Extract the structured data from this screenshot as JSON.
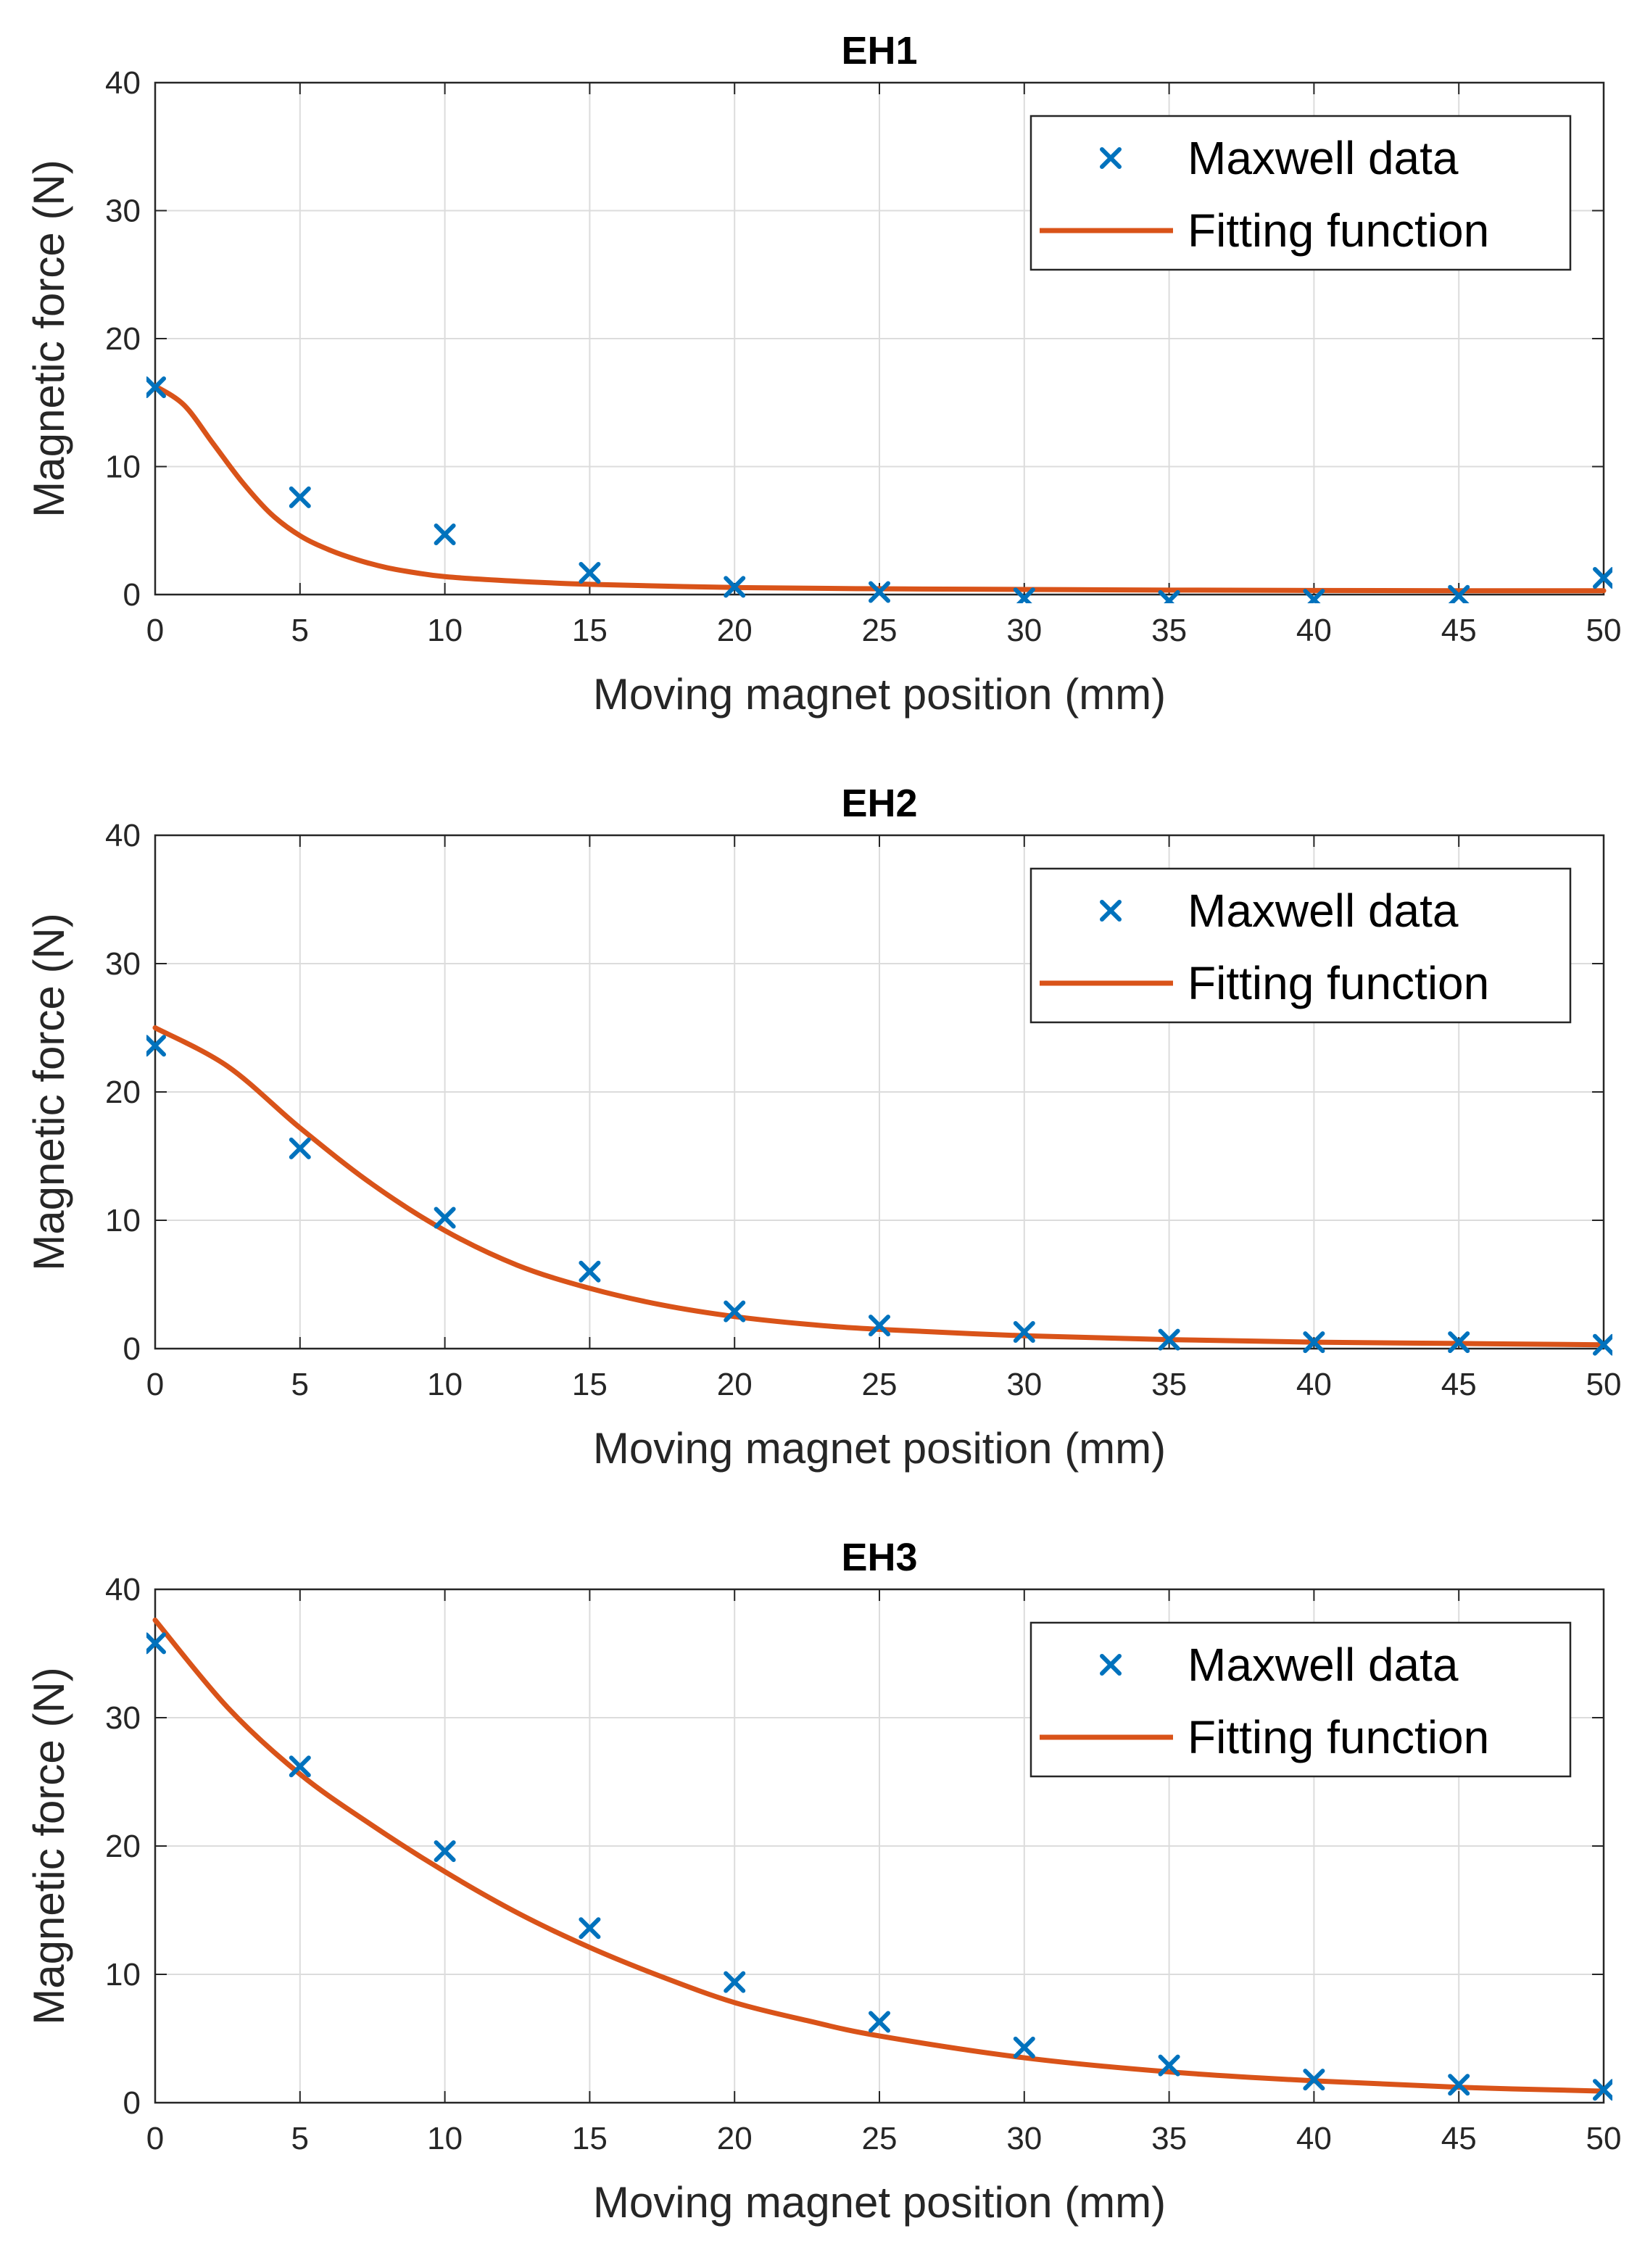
{
  "colors": {
    "scatter": "#0072BD",
    "fit": "#D95319",
    "grid": "#DCDCDC",
    "axis": "#262626",
    "background": "#FFFFFF"
  },
  "chart_data": [
    {
      "type": "scatter+line",
      "title": "EH1",
      "xlabel": "Moving magnet position (mm)",
      "ylabel": "Magnetic force (N)",
      "xlim": [
        0,
        50
      ],
      "ylim": [
        0,
        40
      ],
      "xticks": [
        "0",
        "5",
        "10",
        "15",
        "20",
        "25",
        "30",
        "35",
        "40",
        "45",
        "50"
      ],
      "yticks": [
        "0",
        "10",
        "20",
        "30",
        "40"
      ],
      "grid": true,
      "legend": {
        "position": "top-right",
        "entries": [
          "Maxwell data",
          "Fitting function"
        ]
      },
      "series": [
        {
          "name": "Maxwell data",
          "marker": "x",
          "x": [
            0,
            5,
            10,
            15,
            20,
            25,
            30,
            35,
            40,
            45,
            50
          ],
          "y": [
            16.2,
            7.6,
            4.7,
            1.7,
            0.6,
            0.2,
            -0.3,
            -0.5,
            -0.4,
            -0.1,
            1.3
          ]
        },
        {
          "name": "Fitting function",
          "line": true,
          "x": [
            0,
            1,
            2,
            3,
            4,
            5,
            6,
            7,
            8,
            9,
            10,
            12,
            15,
            20,
            25,
            30,
            35,
            40,
            45,
            50
          ],
          "y": [
            16.3,
            14.8,
            11.8,
            8.8,
            6.3,
            4.6,
            3.5,
            2.7,
            2.1,
            1.7,
            1.4,
            1.1,
            0.8,
            0.55,
            0.45,
            0.4,
            0.35,
            0.32,
            0.3,
            0.3
          ]
        }
      ]
    },
    {
      "type": "scatter+line",
      "title": "EH2",
      "xlabel": "Moving magnet position (mm)",
      "ylabel": "Magnetic force (N)",
      "xlim": [
        0,
        50
      ],
      "ylim": [
        0,
        40
      ],
      "xticks": [
        "0",
        "5",
        "10",
        "15",
        "20",
        "25",
        "30",
        "35",
        "40",
        "45",
        "50"
      ],
      "yticks": [
        "0",
        "10",
        "20",
        "30",
        "40"
      ],
      "grid": true,
      "legend": {
        "position": "top-right",
        "entries": [
          "Maxwell data",
          "Fitting function"
        ]
      },
      "series": [
        {
          "name": "Maxwell data",
          "marker": "x",
          "x": [
            0,
            5,
            10,
            15,
            20,
            25,
            30,
            35,
            40,
            45,
            50
          ],
          "y": [
            23.6,
            15.6,
            10.2,
            6.0,
            2.9,
            1.8,
            1.3,
            0.7,
            0.5,
            0.5,
            0.3
          ]
        },
        {
          "name": "Fitting function",
          "line": true,
          "x": [
            0,
            2.5,
            5,
            7.5,
            10,
            12.5,
            15,
            17.5,
            20,
            22.5,
            25,
            30,
            35,
            40,
            45,
            50
          ],
          "y": [
            25.0,
            22.0,
            17.2,
            12.8,
            9.2,
            6.5,
            4.7,
            3.4,
            2.5,
            1.9,
            1.5,
            1.0,
            0.7,
            0.5,
            0.4,
            0.3
          ]
        }
      ]
    },
    {
      "type": "scatter+line",
      "title": "EH3",
      "xlabel": "Moving magnet position (mm)",
      "ylabel": "Magnetic force (N)",
      "xlim": [
        0,
        50
      ],
      "ylim": [
        0,
        40
      ],
      "xticks": [
        "0",
        "5",
        "10",
        "15",
        "20",
        "25",
        "30",
        "35",
        "40",
        "45",
        "50"
      ],
      "yticks": [
        "0",
        "10",
        "20",
        "30",
        "40"
      ],
      "grid": true,
      "legend": {
        "position": "top-right",
        "entries": [
          "Maxwell data",
          "Fitting function"
        ]
      },
      "series": [
        {
          "name": "Maxwell data",
          "marker": "x",
          "x": [
            0,
            5,
            10,
            15,
            20,
            25,
            30,
            35,
            40,
            45,
            50
          ],
          "y": [
            35.8,
            26.2,
            19.6,
            13.6,
            9.4,
            6.3,
            4.3,
            2.9,
            1.8,
            1.4,
            1.0
          ]
        },
        {
          "name": "Fitting function",
          "line": true,
          "x": [
            0,
            2.5,
            5,
            7.5,
            10,
            12.5,
            15,
            17.5,
            20,
            22.5,
            25,
            30,
            35,
            40,
            45,
            50
          ],
          "y": [
            37.6,
            30.8,
            25.6,
            21.6,
            18.0,
            14.8,
            12.1,
            9.8,
            7.8,
            6.4,
            5.2,
            3.5,
            2.4,
            1.7,
            1.2,
            0.9
          ]
        }
      ]
    }
  ]
}
